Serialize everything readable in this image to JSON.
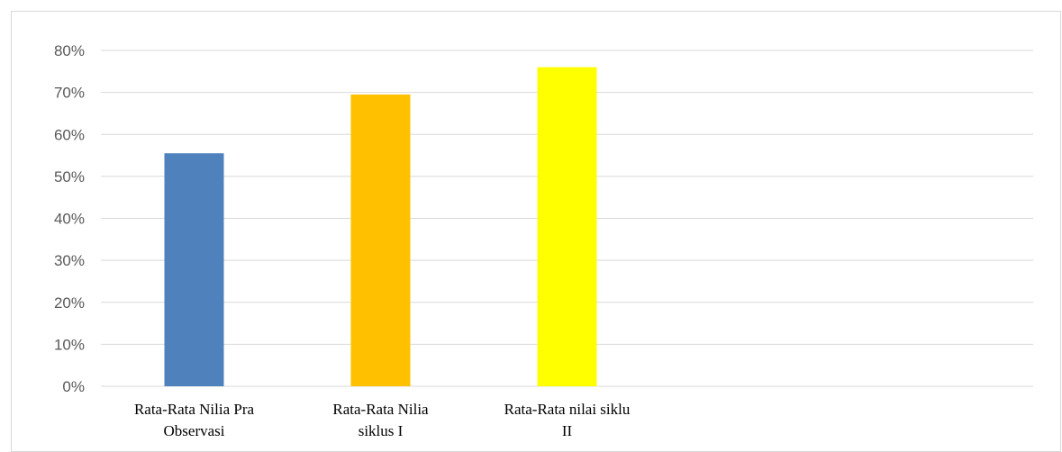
{
  "chart_data": {
    "type": "bar",
    "categories": [
      [
        "Rata-Rata Nilia Pra",
        "Observasi"
      ],
      [
        "Rata-Rata Nilia",
        "siklus I"
      ],
      [
        "Rata-Rata nilai siklu",
        "II"
      ]
    ],
    "values": [
      55.5,
      69.5,
      76
    ],
    "bar_colors": [
      "#4f81bd",
      "#ffc000",
      "#ffff00"
    ],
    "y_ticks": [
      "0%",
      "10%",
      "20%",
      "30%",
      "40%",
      "50%",
      "60%",
      "70%",
      "80%"
    ],
    "ylim": [
      0,
      80
    ],
    "y_unit": "%",
    "grid": true,
    "gridline_color": "#d9d9d9",
    "legend": false
  }
}
